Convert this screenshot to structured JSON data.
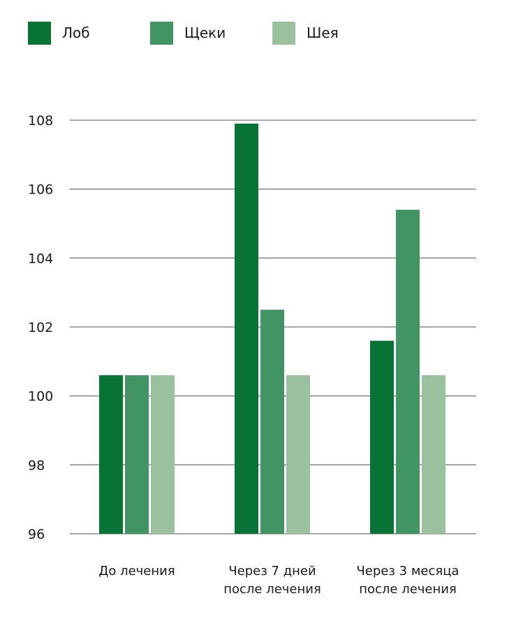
{
  "chart_data": {
    "type": "bar",
    "title": "",
    "xlabel": "",
    "ylabel": "",
    "ylim": [
      96,
      108
    ],
    "yticks": [
      96,
      98,
      100,
      102,
      104,
      106,
      108
    ],
    "grid": true,
    "legend_position": "top-left",
    "categories": [
      [
        "До лечения"
      ],
      [
        "Через 7 дней",
        "после лечения"
      ],
      [
        "Через 3 месяца",
        "после лечения"
      ]
    ],
    "series": [
      {
        "name": "Лоб",
        "color": "#077436",
        "values": [
          100.6,
          107.9,
          101.6
        ]
      },
      {
        "name": "Щеки",
        "color": "#419563",
        "values": [
          100.6,
          102.5,
          105.4
        ]
      },
      {
        "name": "Шея",
        "color": "#9ac09e",
        "values": [
          100.6,
          100.6,
          100.6
        ]
      }
    ]
  },
  "legend": {
    "items": [
      "Лоб",
      "Щеки",
      "Шея"
    ]
  }
}
